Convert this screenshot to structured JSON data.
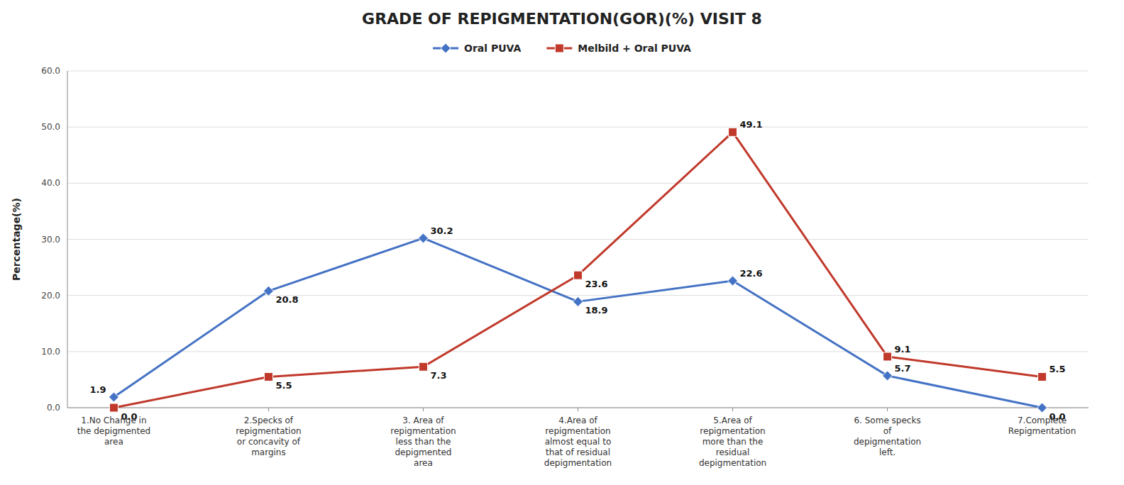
{
  "chart_data": {
    "type": "line",
    "title": "GRADE OF REPIGMENTATION(GOR)(%) VISIT 8",
    "y_label": "Percentage(%)",
    "categories": [
      "1.No Change in\nthe depigmented\narea",
      "2.Specks of\nrepigmentation\nor concavity of\nmargins",
      "3. Area of\nrepigmentation\nless than the\ndepigmented\narea",
      "4.Area of\nrepigmentation\nalmost equal to\nthat of residual\ndepigmentation",
      "5.Area of\nrepigmentation\nmore than the\nresidual\ndepigmentation",
      "6. Some specks\nof\ndepigmentation\nleft.",
      "7.Complete\nRepigmentation"
    ],
    "series": [
      {
        "name": "Oral PUVA",
        "color": "#4472C4",
        "marker": "diamond",
        "values": [
          1.9,
          20.8,
          30.2,
          18.9,
          22.6,
          5.7,
          0.0
        ],
        "value_labels": [
          "1.9",
          "20.8",
          "30.2",
          "18.9",
          "22.6",
          "5.7",
          "0.0"
        ]
      },
      {
        "name": "Melbild + Oral PUVA",
        "color": "#C0392B",
        "marker": "square",
        "values": [
          0.0,
          5.5,
          7.3,
          23.6,
          49.1,
          9.1,
          5.5
        ],
        "value_labels": [
          "0.0",
          "5.5",
          "7.3",
          "23.6",
          "49.1",
          "9.1",
          "5.5"
        ]
      }
    ],
    "ylim": [
      0,
      60
    ],
    "yticks": [
      {
        "value": 0,
        "label": "0.0"
      },
      {
        "value": 10,
        "label": "10.0"
      },
      {
        "value": 20,
        "label": "20.0"
      },
      {
        "value": 30,
        "label": "30.0"
      },
      {
        "value": 40,
        "label": "40.0"
      },
      {
        "value": 50,
        "label": "50.0"
      },
      {
        "value": 60,
        "label": "60.0"
      }
    ],
    "grid": true,
    "legend": "upper center",
    "data_labels": true
  }
}
